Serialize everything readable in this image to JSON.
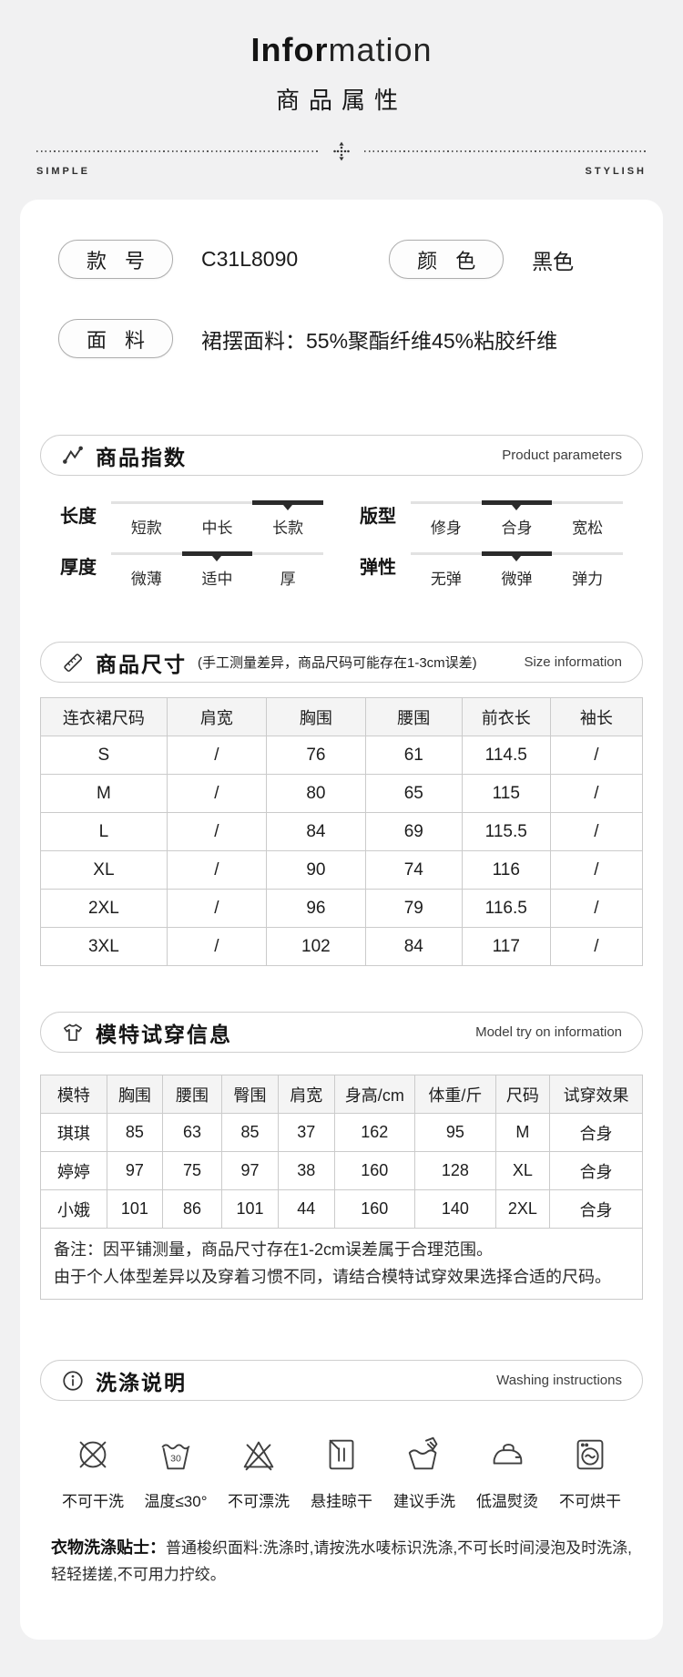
{
  "header": {
    "title_bold": "Infor",
    "title_light": "mation",
    "subtitle": "商品属性",
    "left_tag": "SIMPLE",
    "right_tag": "STYLISH"
  },
  "basic": {
    "style_label": "款 号",
    "style_value": "C31L8090",
    "color_label": "颜 色",
    "color_value": "黑色",
    "fabric_label": "面 料",
    "fabric_value": "裙摆面料：55%聚酯纤维45%粘胶纤维"
  },
  "params_section": {
    "icon": "chart-icon",
    "title": "商品指数",
    "subtitle_en": "Product parameters",
    "rows": [
      {
        "label": "长度",
        "options": [
          "短款",
          "中长",
          "长款"
        ],
        "active": 2
      },
      {
        "label": "版型",
        "options": [
          "修身",
          "合身",
          "宽松"
        ],
        "active": 1
      },
      {
        "label": "厚度",
        "options": [
          "微薄",
          "适中",
          "厚"
        ],
        "active": 1
      },
      {
        "label": "弹性",
        "options": [
          "无弹",
          "微弹",
          "弹力"
        ],
        "active": 1
      }
    ]
  },
  "size_section": {
    "icon": "ruler-icon",
    "title": "商品尺寸",
    "note": "(手工测量差异，商品尺码可能存在1-3cm误差)",
    "subtitle_en": "Size information",
    "table": {
      "headers": [
        "连衣裙尺码",
        "肩宽",
        "胸围",
        "腰围",
        "前衣长",
        "袖长"
      ],
      "col_widths": [
        "21%",
        "16.5%",
        "16.5%",
        "16%",
        "14.7%",
        "15.3%"
      ],
      "rows": [
        [
          "S",
          "/",
          "76",
          "61",
          "114.5",
          "/"
        ],
        [
          "M",
          "/",
          "80",
          "65",
          "115",
          "/"
        ],
        [
          "L",
          "/",
          "84",
          "69",
          "115.5",
          "/"
        ],
        [
          "XL",
          "/",
          "90",
          "74",
          "116",
          "/"
        ],
        [
          "2XL",
          "/",
          "96",
          "79",
          "116.5",
          "/"
        ],
        [
          "3XL",
          "/",
          "102",
          "84",
          "117",
          "/"
        ]
      ]
    }
  },
  "model_section": {
    "icon": "tshirt-icon",
    "title": "模特试穿信息",
    "subtitle_en": "Model try on information",
    "table": {
      "headers": [
        "模特",
        "胸围",
        "腰围",
        "臀围",
        "肩宽",
        "身高/cm",
        "体重/斤",
        "尺码",
        "试穿效果"
      ],
      "col_widths": [
        "11%",
        "9.3%",
        "9.8%",
        "9.4%",
        "9.3%",
        "13.4%",
        "13.4%",
        "9%",
        "15.4%"
      ],
      "rows": [
        [
          "琪琪",
          "85",
          "63",
          "85",
          "37",
          "162",
          "95",
          "M",
          "合身"
        ],
        [
          "婷婷",
          "97",
          "75",
          "97",
          "38",
          "160",
          "128",
          "XL",
          "合身"
        ],
        [
          "小娥",
          "101",
          "86",
          "101",
          "44",
          "160",
          "140",
          "2XL",
          "合身"
        ]
      ],
      "note_line1": "备注：因平铺测量，商品尺寸存在1-2cm误差属于合理范围。",
      "note_line2": "由于个人体型差异以及穿着习惯不同，请结合模特试穿效果选择合适的尺码。"
    }
  },
  "wash_section": {
    "icon": "info-icon",
    "title": "洗涤说明",
    "subtitle_en": "Washing instructions",
    "icons": [
      {
        "name": "no-dry-clean-icon",
        "label": "不可干洗"
      },
      {
        "name": "wash-30-icon",
        "label": "温度≤30°"
      },
      {
        "name": "no-bleach-icon",
        "label": "不可漂洗"
      },
      {
        "name": "hang-dry-icon",
        "label": "悬挂晾干"
      },
      {
        "name": "hand-wash-icon",
        "label": "建议手洗"
      },
      {
        "name": "low-iron-icon",
        "label": "低温熨烫"
      },
      {
        "name": "no-tumble-dry-icon",
        "label": "不可烘干"
      }
    ],
    "tip_label": "衣物洗涤贴士：",
    "tip_text": "普通梭织面料:洗涤时,请按洗水唛标识洗涤,不可长时间浸泡及时洗涤,轻轻搓搓,不可用力拧绞。"
  },
  "colors": {
    "page_bg": "#f1f1f2",
    "card_bg": "#ffffff",
    "text_dark": "#1c1c1c",
    "text_gray": "#3d3d3d",
    "border": "#cbcbcb",
    "track": "#e2e2e2",
    "track_active": "#2b2b2b",
    "table_header_bg": "#f4f4f4"
  }
}
